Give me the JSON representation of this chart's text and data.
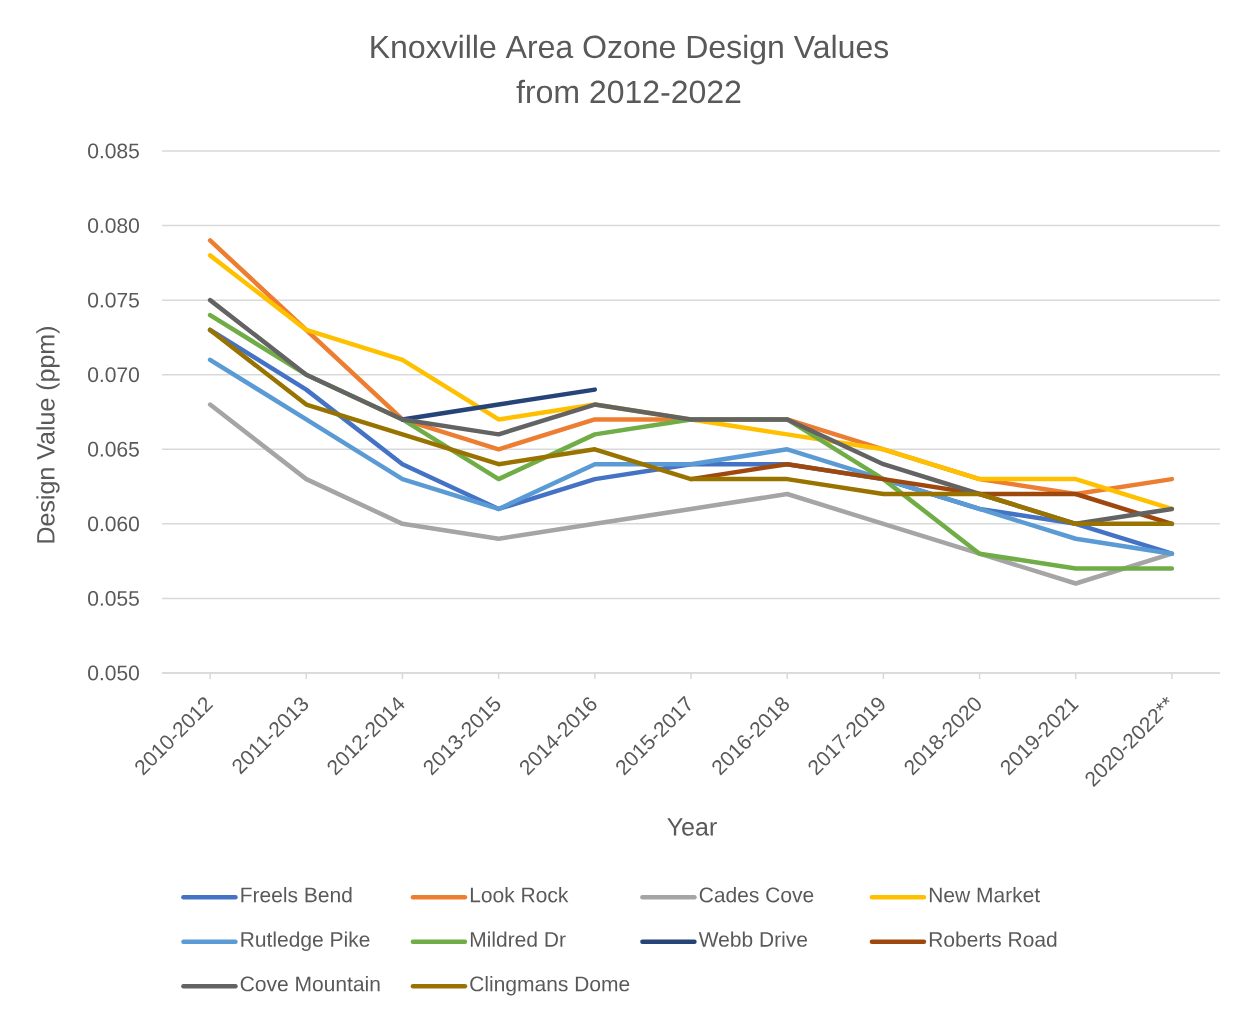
{
  "chart_data": {
    "type": "line",
    "title": "Knoxville Area Ozone Design Values from 2012-2022",
    "xlabel": "Year",
    "ylabel": "Design Value (ppm)",
    "categories": [
      "2010-2012",
      "2011-2013",
      "2012-2014",
      "2013-2015",
      "2014-2016",
      "2015-2017",
      "2016-2018",
      "2017-2019",
      "2018-2020",
      "2019-2021",
      "2020-2022**"
    ],
    "series": [
      {
        "name": "Freels Bend",
        "color": "#4472c4",
        "values": [
          0.073,
          0.069,
          0.064,
          0.061,
          0.063,
          0.064,
          0.064,
          0.063,
          0.061,
          0.06,
          0.058
        ]
      },
      {
        "name": "Look Rock",
        "color": "#ed7d31",
        "values": [
          0.079,
          0.073,
          0.067,
          0.065,
          0.067,
          0.067,
          0.067,
          0.065,
          0.063,
          0.062,
          0.063
        ]
      },
      {
        "name": "Cades Cove",
        "color": "#a5a5a5",
        "values": [
          0.068,
          0.063,
          0.06,
          0.059,
          0.06,
          0.061,
          0.062,
          0.06,
          0.058,
          0.056,
          0.058
        ]
      },
      {
        "name": "New Market",
        "color": "#ffc000",
        "values": [
          0.078,
          0.073,
          0.071,
          0.067,
          0.068,
          0.067,
          0.066,
          0.065,
          0.063,
          0.063,
          0.061
        ]
      },
      {
        "name": "Rutledge Pike",
        "color": "#5b9bd5",
        "values": [
          0.071,
          0.067,
          0.063,
          0.061,
          0.064,
          0.064,
          0.065,
          0.063,
          0.061,
          0.059,
          0.058
        ]
      },
      {
        "name": "Mildred Dr",
        "color": "#70ad47",
        "values": [
          0.074,
          0.07,
          0.067,
          0.063,
          0.066,
          0.067,
          0.067,
          0.063,
          0.058,
          0.057,
          0.057
        ]
      },
      {
        "name": "Webb Drive",
        "color": "#264478",
        "values": [
          null,
          null,
          0.067,
          0.068,
          0.069,
          null,
          null,
          null,
          null,
          null,
          null
        ]
      },
      {
        "name": "Roberts Road",
        "color": "#9e480e",
        "values": [
          null,
          null,
          null,
          null,
          null,
          0.063,
          0.064,
          0.063,
          0.062,
          0.062,
          0.06
        ]
      },
      {
        "name": "Cove Mountain",
        "color": "#636363",
        "values": [
          0.075,
          0.07,
          0.067,
          0.066,
          0.068,
          0.067,
          0.067,
          0.064,
          0.062,
          0.06,
          0.061
        ]
      },
      {
        "name": "Clingmans Dome",
        "color": "#997300",
        "values": [
          0.073,
          0.068,
          0.066,
          0.064,
          0.065,
          0.063,
          0.063,
          0.062,
          0.062,
          0.06,
          0.06
        ]
      }
    ],
    "ylim": [
      0.05,
      0.085
    ],
    "yticks": [
      {
        "value": 0.05,
        "label": "0.050"
      },
      0.055,
      {
        "value": 0.06,
        "label": "0.060"
      },
      0.065,
      {
        "value": 0.07,
        "label": "0.070"
      },
      0.075,
      {
        "value": 0.08,
        "label": "0.080"
      },
      0.085
    ],
    "grid": "y",
    "legend": "bottom"
  }
}
